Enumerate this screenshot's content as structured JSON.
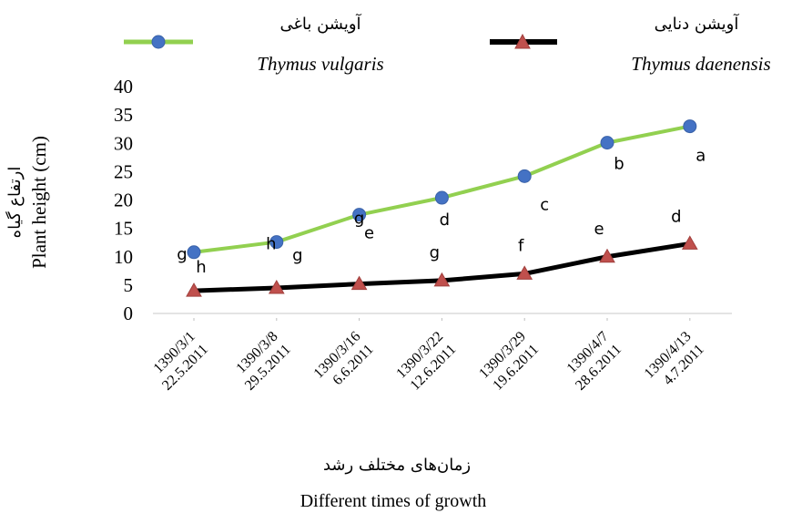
{
  "chart_data": {
    "type": "line",
    "categories": [
      [
        "1390/3/1",
        "22.5.2011"
      ],
      [
        "1390/3/8",
        "29.5.2011"
      ],
      [
        "1390/3/16",
        "6.6.2011"
      ],
      [
        "1390/3/22",
        "12.6.2011"
      ],
      [
        "1390/3/29",
        "19.6.2011"
      ],
      [
        "1390/4/7",
        "28.6.2011"
      ],
      [
        "1390/4/13",
        "4.7.2011"
      ]
    ],
    "series": [
      {
        "name": "Thymus vulgaris",
        "name_fa": "آویشن باغی",
        "color": "#92d050",
        "marker": "circle",
        "marker_color": "#4472c4",
        "values": [
          10.8,
          12.6,
          17.4,
          20.4,
          24.2,
          30.1,
          33.0
        ],
        "letters": [
          "g",
          "h",
          "g",
          "d",
          "c",
          "b",
          "a"
        ]
      },
      {
        "name": "Thymus daenensis",
        "name_fa": "آویشن دنایی",
        "color": "#000000",
        "marker": "triangle",
        "marker_color": "#c0504d",
        "values": [
          4.0,
          4.5,
          5.2,
          5.8,
          7.0,
          10.0,
          12.3
        ],
        "letters": [
          "h",
          "g",
          "e",
          "g",
          "f",
          "e",
          "d"
        ]
      }
    ],
    "ylabel": "Plant height (cm)",
    "ylabel_fa": "ارتفاع گیاه",
    "xlabel": "Different times of growth",
    "xlabel_fa": "زمان‌های مختلف رشد",
    "ylim": [
      0,
      40
    ],
    "yticks": [
      0,
      5,
      10,
      15,
      20,
      25,
      30,
      35,
      40
    ],
    "grid": false,
    "legend_position": "top"
  }
}
